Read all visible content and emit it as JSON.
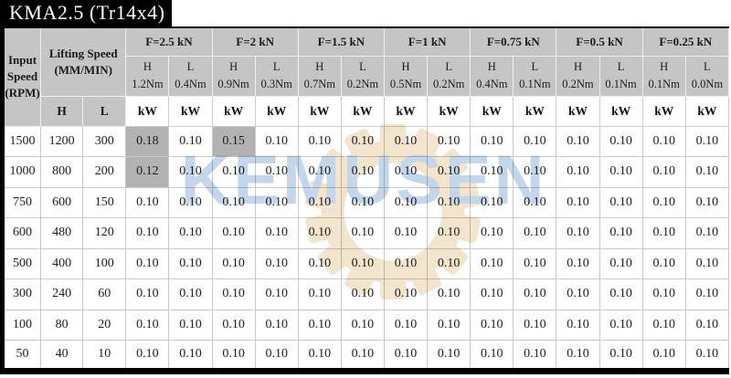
{
  "title": "KMA2.5 (Tr14x4)",
  "colors": {
    "header-gray": "#c5c5c5",
    "highlight-gray": "#b2b2b2",
    "wm-blue": "#c3d6ea",
    "wm-beige": "#f3e5cd",
    "title-bg": "#000000"
  },
  "watermark": {
    "text": "KEMUSEN"
  },
  "table": {
    "input_speed_header": "Input\nSpeed\n(RPM)",
    "lifting_speed_header": "Lifting Speed\n(MM/MIN)",
    "lifting_sub_headers": [
      "H",
      "L"
    ],
    "force_groups": [
      "F=2.5 kN",
      "F=2 kN",
      "F=1.5 kN",
      "F=1 kN",
      "F=0.75 kN",
      "F=0.5 kN",
      "F=0.25 kN"
    ],
    "torque_headers": [
      "H\n1.2Nm",
      "L\n0.4Nm",
      "H\n0.9Nm",
      "L\n0.3Nm",
      "H\n0.7Nm",
      "L\n0.2Nm",
      "H\n0.5Nm",
      "L\n0.2Nm",
      "H\n0.4Nm",
      "L\n0.1Nm",
      "H\n0.2Nm",
      "L\n0.1Nm",
      "H\n0.1Nm",
      "L\n0.0Nm"
    ],
    "unit_label": "kW",
    "rows": [
      {
        "rpm": "1500",
        "lifting_h": "1200",
        "lifting_l": "300",
        "kw": [
          "0.18",
          "0.10",
          "0.15",
          "0.10",
          "0.10",
          "0.10",
          "0.10",
          "0.10",
          "0.10",
          "0.10",
          "0.10",
          "0.10",
          "0.10",
          "0.10"
        ],
        "highlighted": [
          0,
          2
        ]
      },
      {
        "rpm": "1000",
        "lifting_h": "800",
        "lifting_l": "200",
        "kw": [
          "0.12",
          "0.10",
          "0.10",
          "0.10",
          "0.10",
          "0.10",
          "0.10",
          "0.10",
          "0.10",
          "0.10",
          "0.10",
          "0.10",
          "0.10",
          "0.10"
        ],
        "highlighted": [
          0
        ]
      },
      {
        "rpm": "750",
        "lifting_h": "600",
        "lifting_l": "150",
        "kw": [
          "0.10",
          "0.10",
          "0.10",
          "0.10",
          "0.10",
          "0.10",
          "0.10",
          "0.10",
          "0.10",
          "0.10",
          "0.10",
          "0.10",
          "0.10",
          "0.10"
        ],
        "highlighted": []
      },
      {
        "rpm": "600",
        "lifting_h": "480",
        "lifting_l": "120",
        "kw": [
          "0.10",
          "0.10",
          "0.10",
          "0.10",
          "0.10",
          "0.10",
          "0.10",
          "0.10",
          "0.10",
          "0.10",
          "0.10",
          "0.10",
          "0.10",
          "0.10"
        ],
        "highlighted": []
      },
      {
        "rpm": "500",
        "lifting_h": "400",
        "lifting_l": "100",
        "kw": [
          "0.10",
          "0.10",
          "0.10",
          "0.10",
          "0.10",
          "0.10",
          "0.10",
          "0.10",
          "0.10",
          "0.10",
          "0.10",
          "0.10",
          "0.10",
          "0.10"
        ],
        "highlighted": []
      },
      {
        "rpm": "300",
        "lifting_h": "240",
        "lifting_l": "60",
        "kw": [
          "0.10",
          "0.10",
          "0.10",
          "0.10",
          "0.10",
          "0.10",
          "0.10",
          "0.10",
          "0.10",
          "0.10",
          "0.10",
          "0.10",
          "0.10",
          "0.10"
        ],
        "highlighted": []
      },
      {
        "rpm": "100",
        "lifting_h": "80",
        "lifting_l": "20",
        "kw": [
          "0.10",
          "0.10",
          "0.10",
          "0.10",
          "0.10",
          "0.10",
          "0.10",
          "0.10",
          "0.10",
          "0.10",
          "0.10",
          "0.10",
          "0.10",
          "0.10"
        ],
        "highlighted": []
      },
      {
        "rpm": "50",
        "lifting_h": "40",
        "lifting_l": "10",
        "kw": [
          "0.10",
          "0.10",
          "0.10",
          "0.10",
          "0.10",
          "0.10",
          "0.10",
          "0.10",
          "0.10",
          "0.10",
          "0.10",
          "0.10",
          "0.10",
          "0.10"
        ],
        "highlighted": []
      }
    ]
  }
}
